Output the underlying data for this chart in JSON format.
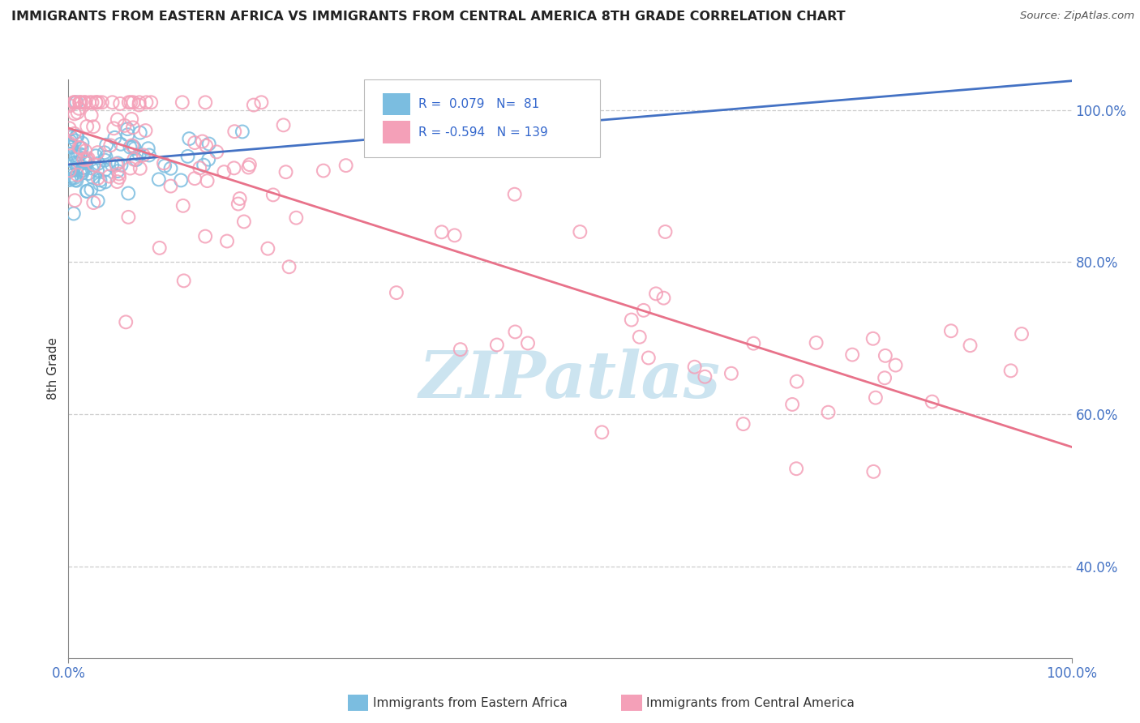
{
  "title": "IMMIGRANTS FROM EASTERN AFRICA VS IMMIGRANTS FROM CENTRAL AMERICA 8TH GRADE CORRELATION CHART",
  "source": "Source: ZipAtlas.com",
  "ylabel": "8th Grade",
  "blue_label": "Immigrants from Eastern Africa",
  "pink_label": "Immigrants from Central America",
  "blue_R": 0.079,
  "blue_N": 81,
  "pink_R": -0.594,
  "pink_N": 139,
  "xlim": [
    0.0,
    1.0
  ],
  "ylim": [
    0.28,
    1.04
  ],
  "right_yticks": [
    0.4,
    0.6,
    0.8,
    1.0
  ],
  "right_yticklabels": [
    "40.0%",
    "60.0%",
    "80.0%",
    "100.0%"
  ],
  "blue_color": "#7bbde0",
  "pink_color": "#f4a0b8",
  "blue_line_color": "#4472c4",
  "pink_line_color": "#e8728a",
  "watermark_color": "#cce4f0",
  "background_color": "#ffffff",
  "grid_color": "#cccccc"
}
